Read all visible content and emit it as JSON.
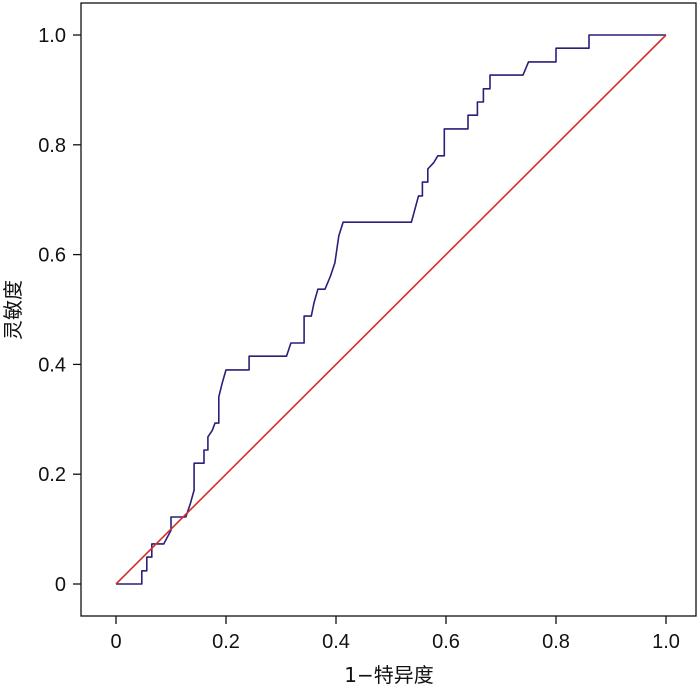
{
  "chart_data": {
    "type": "line",
    "title": "",
    "xlabel": "1−特异度",
    "ylabel": "灵敏度",
    "xlim": [
      0,
      1
    ],
    "ylim": [
      0,
      1
    ],
    "xticks": [
      0,
      0.2,
      0.4,
      0.6,
      0.8,
      1.0
    ],
    "xtick_labels": [
      "0",
      "0.2",
      "0.4",
      "0.6",
      "0.8",
      "1.0"
    ],
    "yticks": [
      0,
      0.2,
      0.4,
      0.6,
      0.8,
      1.0
    ],
    "ytick_labels": [
      "0",
      "0.2",
      "0.4",
      "0.6",
      "0.8",
      "1.0"
    ],
    "grid": false,
    "legend": "none",
    "series": [
      {
        "color": "#2b1f78",
        "points": [
          [
            0,
            0
          ],
          [
            0.047,
            0
          ],
          [
            0.047,
            0.024
          ],
          [
            0.056,
            0.024
          ],
          [
            0.056,
            0.049
          ],
          [
            0.065,
            0.049
          ],
          [
            0.065,
            0.073
          ],
          [
            0.087,
            0.073
          ],
          [
            0.1,
            0.098
          ],
          [
            0.1,
            0.122
          ],
          [
            0.127,
            0.122
          ],
          [
            0.135,
            0.146
          ],
          [
            0.142,
            0.171
          ],
          [
            0.142,
            0.22
          ],
          [
            0.16,
            0.22
          ],
          [
            0.16,
            0.244
          ],
          [
            0.167,
            0.244
          ],
          [
            0.167,
            0.268
          ],
          [
            0.175,
            0.28
          ],
          [
            0.18,
            0.293
          ],
          [
            0.187,
            0.293
          ],
          [
            0.187,
            0.341
          ],
          [
            0.193,
            0.366
          ],
          [
            0.2,
            0.39
          ],
          [
            0.242,
            0.39
          ],
          [
            0.242,
            0.415
          ],
          [
            0.31,
            0.415
          ],
          [
            0.318,
            0.439
          ],
          [
            0.342,
            0.439
          ],
          [
            0.342,
            0.488
          ],
          [
            0.355,
            0.488
          ],
          [
            0.36,
            0.512
          ],
          [
            0.367,
            0.537
          ],
          [
            0.38,
            0.537
          ],
          [
            0.39,
            0.561
          ],
          [
            0.398,
            0.585
          ],
          [
            0.405,
            0.634
          ],
          [
            0.413,
            0.659
          ],
          [
            0.537,
            0.659
          ],
          [
            0.55,
            0.707
          ],
          [
            0.557,
            0.707
          ],
          [
            0.557,
            0.732
          ],
          [
            0.567,
            0.732
          ],
          [
            0.567,
            0.756
          ],
          [
            0.578,
            0.768
          ],
          [
            0.585,
            0.78
          ],
          [
            0.597,
            0.78
          ],
          [
            0.597,
            0.829
          ],
          [
            0.64,
            0.829
          ],
          [
            0.64,
            0.854
          ],
          [
            0.657,
            0.854
          ],
          [
            0.657,
            0.878
          ],
          [
            0.668,
            0.878
          ],
          [
            0.668,
            0.902
          ],
          [
            0.68,
            0.902
          ],
          [
            0.68,
            0.927
          ],
          [
            0.74,
            0.927
          ],
          [
            0.75,
            0.951
          ],
          [
            0.8,
            0.951
          ],
          [
            0.8,
            0.976
          ],
          [
            0.86,
            0.976
          ],
          [
            0.86,
            1.0
          ],
          [
            1.0,
            1.0
          ]
        ]
      },
      {
        "color": "#d42e26",
        "points": [
          [
            0,
            0
          ],
          [
            1,
            1
          ]
        ]
      }
    ]
  }
}
